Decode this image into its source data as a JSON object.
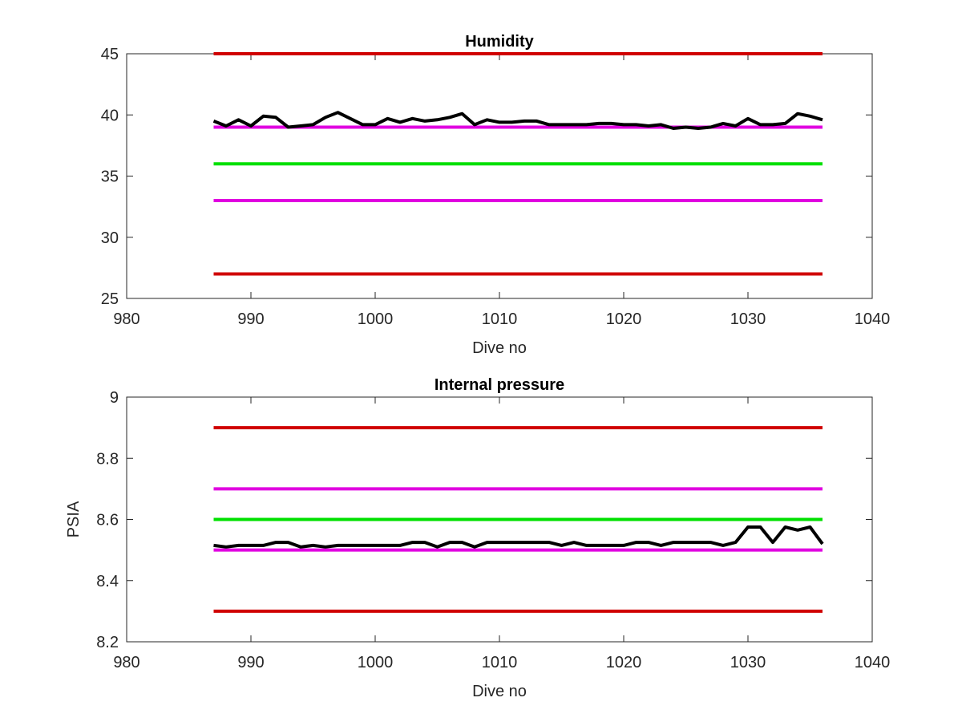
{
  "chart_data": [
    {
      "type": "line",
      "title": "Humidity",
      "xlabel": "Dive no",
      "ylabel": "",
      "xlim": [
        980,
        1040
      ],
      "ylim": [
        25,
        45
      ],
      "xticks": [
        980,
        990,
        1000,
        1010,
        1020,
        1030,
        1040
      ],
      "yticks": [
        25,
        30,
        35,
        40,
        45
      ],
      "grid": false,
      "limit_lines": [
        {
          "y": 45,
          "color": "#d00000",
          "x_range": [
            987,
            1036
          ]
        },
        {
          "y": 39,
          "color": "#e000e0",
          "x_range": [
            987,
            1036
          ]
        },
        {
          "y": 36,
          "color": "#00e000",
          "x_range": [
            987,
            1036
          ]
        },
        {
          "y": 33,
          "color": "#e000e0",
          "x_range": [
            987,
            1036
          ]
        },
        {
          "y": 27,
          "color": "#d00000",
          "x_range": [
            987,
            1036
          ]
        }
      ],
      "series": [
        {
          "color": "#000000",
          "x": [
            987,
            988,
            989,
            990,
            991,
            992,
            993,
            994,
            995,
            996,
            997,
            998,
            999,
            1000,
            1001,
            1002,
            1003,
            1004,
            1005,
            1006,
            1007,
            1008,
            1009,
            1010,
            1011,
            1012,
            1013,
            1014,
            1015,
            1016,
            1017,
            1018,
            1019,
            1020,
            1021,
            1022,
            1023,
            1024,
            1025,
            1026,
            1027,
            1028,
            1029,
            1030,
            1031,
            1032,
            1033,
            1034,
            1035,
            1036
          ],
          "y": [
            39.5,
            39.1,
            39.6,
            39.1,
            39.9,
            39.8,
            39.0,
            39.1,
            39.2,
            39.8,
            40.2,
            39.7,
            39.2,
            39.2,
            39.7,
            39.4,
            39.7,
            39.5,
            39.6,
            39.8,
            40.1,
            39.2,
            39.6,
            39.4,
            39.4,
            39.5,
            39.5,
            39.2,
            39.2,
            39.2,
            39.2,
            39.3,
            39.3,
            39.2,
            39.2,
            39.1,
            39.2,
            38.9,
            39.0,
            38.9,
            39.0,
            39.3,
            39.1,
            39.7,
            39.2,
            39.2,
            39.3,
            40.1,
            39.9,
            39.6
          ]
        }
      ]
    },
    {
      "type": "line",
      "title": "Internal pressure",
      "xlabel": "Dive no",
      "ylabel": "PSIA",
      "xlim": [
        980,
        1040
      ],
      "ylim": [
        8.2,
        9
      ],
      "xticks": [
        980,
        990,
        1000,
        1010,
        1020,
        1030,
        1040
      ],
      "yticks": [
        8.2,
        8.4,
        8.6,
        8.8,
        9
      ],
      "ytick_labels": [
        "8.2",
        "8.4",
        "8.6",
        "8.8",
        "9"
      ],
      "grid": false,
      "limit_lines": [
        {
          "y": 8.9,
          "color": "#d00000",
          "x_range": [
            987,
            1036
          ]
        },
        {
          "y": 8.7,
          "color": "#e000e0",
          "x_range": [
            987,
            1036
          ]
        },
        {
          "y": 8.6,
          "color": "#00e000",
          "x_range": [
            987,
            1036
          ]
        },
        {
          "y": 8.5,
          "color": "#e000e0",
          "x_range": [
            987,
            1036
          ]
        },
        {
          "y": 8.3,
          "color": "#d00000",
          "x_range": [
            987,
            1036
          ]
        }
      ],
      "series": [
        {
          "color": "#000000",
          "x": [
            987,
            988,
            989,
            990,
            991,
            992,
            993,
            994,
            995,
            996,
            997,
            998,
            999,
            1000,
            1001,
            1002,
            1003,
            1004,
            1005,
            1006,
            1007,
            1008,
            1009,
            1010,
            1011,
            1012,
            1013,
            1014,
            1015,
            1016,
            1017,
            1018,
            1019,
            1020,
            1021,
            1022,
            1023,
            1024,
            1025,
            1026,
            1027,
            1028,
            1029,
            1030,
            1031,
            1032,
            1033,
            1034,
            1035,
            1036
          ],
          "y": [
            8.515,
            8.51,
            8.515,
            8.515,
            8.515,
            8.525,
            8.525,
            8.51,
            8.515,
            8.51,
            8.515,
            8.515,
            8.515,
            8.515,
            8.515,
            8.515,
            8.525,
            8.525,
            8.51,
            8.525,
            8.525,
            8.51,
            8.525,
            8.525,
            8.525,
            8.525,
            8.525,
            8.525,
            8.515,
            8.525,
            8.515,
            8.515,
            8.515,
            8.515,
            8.525,
            8.525,
            8.515,
            8.525,
            8.525,
            8.525,
            8.525,
            8.515,
            8.525,
            8.575,
            8.575,
            8.525,
            8.575,
            8.565,
            8.575,
            8.52
          ]
        }
      ]
    }
  ]
}
